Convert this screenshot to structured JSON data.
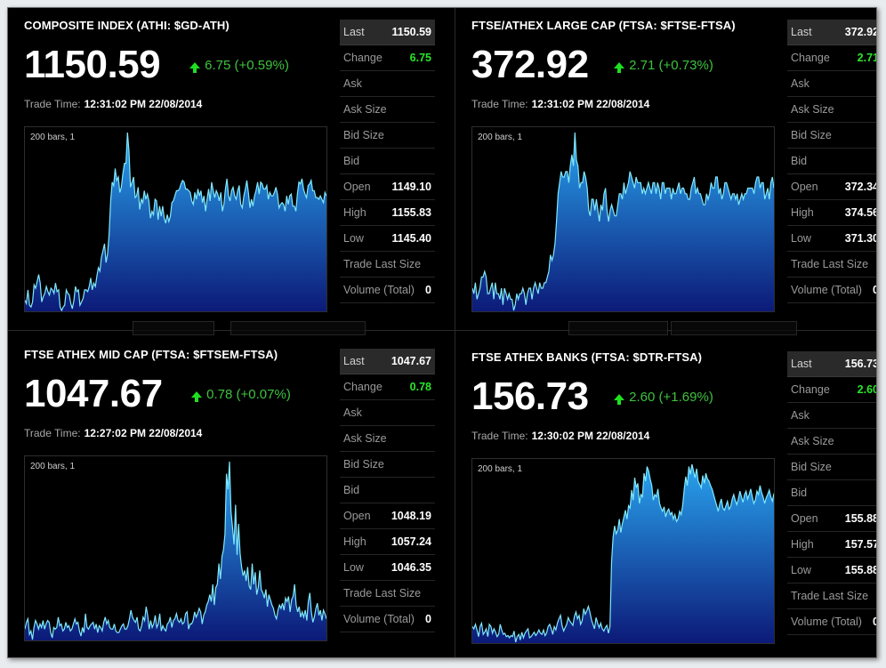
{
  "panels": [
    {
      "title": "COMPOSITE INDEX (ATHI: $GD-ATH)",
      "price": "1150.59",
      "change_text": "6.75 (+0.59%)",
      "trade_time_label": "Trade Time:",
      "trade_time": "12:31:02 PM 22/08/2014",
      "bars_label": "200 bars, 1",
      "rows": [
        {
          "label": "Last",
          "value": "1150.59"
        },
        {
          "label": "Change",
          "value": "6.75"
        },
        {
          "label": "Ask",
          "value": ""
        },
        {
          "label": "Ask Size",
          "value": ""
        },
        {
          "label": "Bid Size",
          "value": ""
        },
        {
          "label": "Bid",
          "value": ""
        },
        {
          "label": "Open",
          "value": "1149.10"
        },
        {
          "label": "High",
          "value": "1155.83"
        },
        {
          "label": "Low",
          "value": "1145.40"
        },
        {
          "label": "Trade Last Size",
          "value": ""
        },
        {
          "label": "Volume (Total)",
          "value": "0"
        }
      ],
      "series": [
        1146.0,
        1145.8,
        1146.6,
        1145.7,
        1145.6,
        1145.9,
        1146.9,
        1146.7,
        1147.1,
        1147.5,
        1147.0,
        1145.9,
        1146.2,
        1146.4,
        1146.8,
        1146.5,
        1146.3,
        1146.7,
        1146.6,
        1146.4,
        1147.0,
        1146.5,
        1146.6,
        1145.6,
        1145.4,
        1145.6,
        1145.7,
        1146.6,
        1146.4,
        1146.3,
        1145.8,
        1145.5,
        1146.0,
        1146.8,
        1146.5,
        1146.6,
        1145.7,
        1145.9,
        1146.1,
        1146.6,
        1146.6,
        1146.5,
        1146.8,
        1147.3,
        1146.6,
        1147.0,
        1146.8,
        1147.4,
        1147.9,
        1147.7,
        1148.5,
        1148.9,
        1149.3,
        1148.2,
        1148.7,
        1149.8,
        1151.8,
        1152.9,
        1152.7,
        1153.7,
        1153.0,
        1153.2,
        1152.3,
        1152.6,
        1153.4,
        1154.0,
        1154.0,
        1155.8,
        1154.7,
        1152.6,
        1152.9,
        1153.2,
        1152.0,
        1152.1,
        1152.6,
        1151.3,
        1151.9,
        1151.7,
        1152.4,
        1151.9,
        1152.2,
        1151.8,
        1150.8,
        1151.2,
        1151.0,
        1151.9,
        1151.8,
        1150.7,
        1151.5,
        1150.9,
        1151.5,
        1150.8,
        1150.5,
        1151.0,
        1150.6,
        1150.9,
        1151.7,
        1151.8,
        1152.1,
        1152.4,
        1152.4,
        1152.5,
        1152.8,
        1153.0,
        1152.9,
        1152.5,
        1152.5,
        1152.4,
        1152.3,
        1151.8,
        1151.6,
        1152.3,
        1151.9,
        1152.5,
        1152.1,
        1152.4,
        1151.7,
        1152.1,
        1151.2,
        1151.9,
        1152.5,
        1151.8,
        1152.9,
        1152.4,
        1152.0,
        1152.4,
        1152.2,
        1151.8,
        1152.3,
        1151.2,
        1151.6,
        1152.5,
        1153.1,
        1152.1,
        1151.8,
        1152.4,
        1152.6,
        1152.1,
        1151.9,
        1152.4,
        1152.7,
        1151.6,
        1151.4,
        1152.1,
        1152.5,
        1153.0,
        1152.3,
        1151.4,
        1151.9,
        1151.5,
        1152.1,
        1152.4,
        1152.9,
        1152.2,
        1152.9,
        1152.8,
        1152.5,
        1152.5,
        1152.7,
        1151.9,
        1152.3,
        1152.1,
        1152.1,
        1152.3,
        1152.6,
        1152.2,
        1151.4,
        1151.6,
        1151.7,
        1151.6,
        1151.2,
        1152.1,
        1151.6,
        1152.1,
        1152.2,
        1151.5,
        1151.5,
        1151.2,
        1152.2,
        1152.9,
        1152.8,
        1153.1,
        1152.5,
        1152.2,
        1152.0,
        1152.7,
        1152.8,
        1153.0,
        1152.4,
        1152.4,
        1152.0,
        1152.0,
        1151.9,
        1152.1,
        1151.9,
        1151.7,
        1152.3,
        1152.1
      ]
    },
    {
      "title": "FTSE/ATHEX LARGE CAP (FTSA: $FTSE-FTSA)",
      "price": "372.92",
      "change_text": "2.71 (+0.73%)",
      "trade_time_label": "Trade Time:",
      "trade_time": "12:31:02 PM 22/08/2014",
      "bars_label": "200 bars, 1",
      "rows": [
        {
          "label": "Last",
          "value": "372.92"
        },
        {
          "label": "Change",
          "value": "2.71"
        },
        {
          "label": "Ask",
          "value": ""
        },
        {
          "label": "Ask Size",
          "value": ""
        },
        {
          "label": "Bid Size",
          "value": ""
        },
        {
          "label": "Bid",
          "value": ""
        },
        {
          "label": "Open",
          "value": "372.34"
        },
        {
          "label": "High",
          "value": "374.56"
        },
        {
          "label": "Low",
          "value": "371.30"
        },
        {
          "label": "Trade Last Size",
          "value": ""
        },
        {
          "label": "Volume (Total)",
          "value": "0"
        }
      ],
      "series": [
        371.8,
        371.7,
        371.9,
        371.6,
        371.7,
        371.8,
        372.0,
        372.0,
        372.1,
        372.0,
        371.7,
        371.7,
        371.8,
        371.9,
        371.6,
        371.9,
        371.7,
        371.7,
        371.6,
        371.8,
        371.5,
        371.8,
        371.7,
        371.6,
        371.7,
        371.6,
        371.6,
        371.4,
        371.5,
        371.7,
        371.6,
        371.7,
        371.7,
        371.8,
        371.7,
        371.5,
        371.7,
        371.8,
        371.8,
        371.6,
        371.8,
        371.9,
        371.8,
        371.7,
        371.9,
        371.8,
        371.8,
        371.9,
        371.9,
        372.0,
        372.1,
        372.4,
        372.3,
        372.4,
        372.6,
        373.0,
        373.5,
        373.7,
        373.9,
        373.8,
        373.8,
        373.9,
        373.9,
        373.7,
        374.0,
        374.2,
        374.0,
        374.6,
        374.1,
        374.0,
        373.6,
        373.7,
        373.7,
        373.9,
        373.8,
        373.6,
        373.2,
        373.1,
        373.4,
        373.4,
        373.2,
        373.4,
        373.2,
        373.0,
        373.3,
        373.2,
        373.5,
        373.6,
        373.2,
        373.0,
        373.2,
        373.3,
        373.2,
        373.1,
        373.1,
        373.3,
        373.5,
        373.5,
        373.4,
        373.7,
        373.5,
        373.6,
        373.7,
        373.9,
        373.8,
        373.7,
        373.6,
        373.8,
        373.7,
        373.7,
        373.7,
        373.5,
        373.6,
        373.5,
        373.6,
        373.7,
        373.6,
        373.5,
        373.7,
        373.7,
        373.5,
        373.7,
        373.6,
        373.4,
        373.7,
        373.7,
        373.5,
        373.6,
        373.6,
        373.6,
        373.4,
        373.6,
        373.5,
        373.5,
        373.6,
        373.7,
        373.5,
        373.6,
        373.6,
        373.5,
        373.5,
        373.4,
        373.4,
        373.6,
        373.7,
        373.8,
        373.5,
        373.6,
        373.5,
        373.5,
        373.4,
        373.3,
        373.3,
        373.5,
        373.4,
        373.5,
        373.7,
        373.6,
        373.6,
        373.8,
        373.8,
        373.5,
        373.6,
        373.4,
        373.5,
        373.7,
        373.7,
        373.6,
        373.5,
        373.4,
        373.5,
        373.5,
        373.4,
        373.5,
        373.3,
        373.4,
        373.5,
        373.4,
        373.5,
        373.5,
        373.6,
        373.6,
        373.6,
        373.6,
        373.5,
        373.7,
        373.8,
        373.8,
        373.6,
        373.7,
        373.7,
        373.4,
        373.5,
        373.6,
        373.4,
        373.7,
        373.8,
        373.6
      ]
    },
    {
      "title": "FTSE ATHEX MID CAP (FTSA: $FTSEM-FTSA)",
      "price": "1047.67",
      "change_text": "0.78 (+0.07%)",
      "trade_time_label": "Trade Time:",
      "trade_time": "12:27:02 PM 22/08/2014",
      "bars_label": "200 bars, 1",
      "rows": [
        {
          "label": "Last",
          "value": "1047.67"
        },
        {
          "label": "Change",
          "value": "0.78"
        },
        {
          "label": "Ask",
          "value": ""
        },
        {
          "label": "Ask Size",
          "value": ""
        },
        {
          "label": "Bid Size",
          "value": ""
        },
        {
          "label": "Bid",
          "value": ""
        },
        {
          "label": "Open",
          "value": "1048.19"
        },
        {
          "label": "High",
          "value": "1057.24"
        },
        {
          "label": "Low",
          "value": "1046.35"
        },
        {
          "label": "Trade Last Size",
          "value": ""
        },
        {
          "label": "Volume (Total)",
          "value": "0"
        }
      ],
      "series": [
        1047.5,
        1047.9,
        1048.1,
        1047.2,
        1047.4,
        1046.9,
        1047.6,
        1048.0,
        1047.8,
        1047.5,
        1047.8,
        1047.6,
        1048.0,
        1047.5,
        1047.8,
        1048.0,
        1047.9,
        1047.3,
        1047.0,
        1047.6,
        1047.5,
        1047.6,
        1048.2,
        1047.7,
        1047.8,
        1047.4,
        1047.5,
        1047.9,
        1047.6,
        1047.7,
        1047.4,
        1047.5,
        1047.8,
        1048.1,
        1047.8,
        1047.9,
        1047.4,
        1047.1,
        1047.6,
        1047.3,
        1048.4,
        1047.6,
        1047.5,
        1047.7,
        1047.8,
        1047.9,
        1047.5,
        1047.8,
        1047.3,
        1047.7,
        1047.6,
        1047.4,
        1047.9,
        1048.2,
        1047.8,
        1048.0,
        1047.6,
        1047.5,
        1047.5,
        1047.8,
        1047.4,
        1047.3,
        1047.3,
        1047.5,
        1047.7,
        1047.8,
        1047.5,
        1047.5,
        1047.7,
        1048.1,
        1048.6,
        1048.2,
        1048.0,
        1047.9,
        1048.2,
        1047.5,
        1047.4,
        1047.7,
        1048.2,
        1048.0,
        1048.8,
        1048.3,
        1047.5,
        1048.0,
        1047.6,
        1047.8,
        1048.3,
        1047.6,
        1047.8,
        1048.4,
        1047.4,
        1047.7,
        1047.5,
        1047.4,
        1047.8,
        1047.9,
        1048.2,
        1047.6,
        1048.0,
        1048.1,
        1048.4,
        1048.0,
        1047.9,
        1048.1,
        1047.8,
        1047.9,
        1048.4,
        1048.5,
        1047.5,
        1047.8,
        1047.8,
        1048.0,
        1048.5,
        1048.2,
        1048.4,
        1048.7,
        1048.5,
        1047.8,
        1048.3,
        1048.5,
        1048.9,
        1049.1,
        1049.5,
        1049.1,
        1050.1,
        1048.9,
        1049.9,
        1050.1,
        1051.3,
        1050.4,
        1051.7,
        1052.1,
        1053.0,
        1056.5,
        1055.6,
        1057.2,
        1054.3,
        1053.4,
        1052.4,
        1054.7,
        1051.8,
        1053.6,
        1051.9,
        1051.1,
        1050.6,
        1050.9,
        1050.3,
        1051.1,
        1050.0,
        1049.8,
        1051.3,
        1050.1,
        1050.8,
        1049.5,
        1049.9,
        1050.9,
        1049.8,
        1049.6,
        1049.3,
        1049.8,
        1048.8,
        1049.5,
        1049.2,
        1048.9,
        1048.7,
        1048.3,
        1048.1,
        1048.6,
        1048.9,
        1048.7,
        1049.0,
        1048.6,
        1049.3,
        1049.1,
        1049.4,
        1048.5,
        1049.2,
        1049.4,
        1050.1,
        1048.9,
        1048.5,
        1048.8,
        1048.2,
        1048.5,
        1048.2,
        1048.6,
        1048.0,
        1049.1,
        1049.6,
        1048.5,
        1047.9,
        1048.2,
        1048.7,
        1049.0,
        1048.3,
        1048.6,
        1048.0,
        1048.6,
        1048.4,
        1048.1
      ]
    },
    {
      "title": "FTSE ATHEX BANKS (FTSA: $DTR-FTSA)",
      "price": "156.73",
      "change_text": "2.60 (+1.69%)",
      "trade_time_label": "Trade Time:",
      "trade_time": "12:30:02 PM 22/08/2014",
      "bars_label": "200 bars, 1",
      "rows": [
        {
          "label": "Last",
          "value": "156.73"
        },
        {
          "label": "Change",
          "value": "2.60"
        },
        {
          "label": "Ask",
          "value": ""
        },
        {
          "label": "Ask Size",
          "value": ""
        },
        {
          "label": "Bid Size",
          "value": ""
        },
        {
          "label": "Bid",
          "value": ""
        },
        {
          "label": "Open",
          "value": "155.88"
        },
        {
          "label": "High",
          "value": "157.57"
        },
        {
          "label": "Low",
          "value": "155.88"
        },
        {
          "label": "Trade Last Size",
          "value": ""
        },
        {
          "label": "Volume (Total)",
          "value": "0"
        }
      ],
      "series": [
        156.12,
        156.1,
        156.14,
        156.09,
        156.03,
        156.12,
        156.15,
        156.05,
        156.07,
        156.1,
        156.03,
        156.14,
        156.12,
        156.06,
        156.1,
        156.07,
        156.03,
        156.05,
        156.14,
        156.09,
        156.05,
        156.06,
        156.03,
        156.04,
        156.02,
        156.04,
        156.03,
        156.08,
        155.98,
        156.03,
        156.05,
        156.0,
        156.07,
        156.02,
        156.06,
        156.08,
        156.1,
        156.02,
        156.03,
        156.05,
        156.07,
        156.04,
        156.06,
        156.09,
        156.06,
        156.05,
        156.09,
        156.04,
        156.06,
        156.12,
        156.14,
        156.1,
        156.05,
        156.12,
        156.09,
        156.15,
        156.19,
        156.22,
        156.13,
        156.08,
        156.11,
        156.14,
        156.2,
        156.17,
        156.15,
        156.13,
        156.21,
        156.25,
        156.19,
        156.22,
        156.14,
        156.17,
        156.28,
        156.23,
        156.26,
        156.3,
        156.25,
        156.18,
        156.14,
        156.1,
        156.2,
        156.15,
        156.11,
        156.15,
        156.1,
        156.08,
        156.11,
        156.13,
        156.06,
        156.12,
        156.7,
        156.92,
        157.02,
        156.95,
        156.98,
        157.08,
        156.96,
        157.04,
        157.1,
        157.16,
        157.08,
        157.2,
        157.18,
        157.34,
        157.25,
        157.45,
        157.36,
        157.4,
        157.22,
        157.3,
        157.28,
        157.49,
        157.42,
        157.55,
        157.51,
        157.44,
        157.38,
        157.25,
        157.3,
        157.28,
        157.35,
        157.22,
        157.18,
        157.15,
        157.19,
        157.1,
        157.15,
        157.17,
        157.12,
        157.14,
        157.08,
        157.12,
        157.06,
        157.08,
        157.15,
        157.12,
        157.2,
        157.35,
        157.46,
        157.38,
        157.55,
        157.48,
        157.57,
        157.51,
        157.45,
        157.53,
        157.42,
        157.39,
        157.36,
        157.47,
        157.4,
        157.49,
        157.44,
        157.42,
        157.38,
        157.35,
        157.3,
        157.25,
        157.2,
        157.15,
        157.22,
        157.26,
        157.18,
        157.16,
        157.2,
        157.24,
        157.17,
        157.19,
        157.26,
        157.3,
        157.25,
        157.21,
        157.26,
        157.33,
        157.28,
        157.23,
        157.3,
        157.33,
        157.26,
        157.3,
        157.35,
        157.28,
        157.22,
        157.25,
        157.33,
        157.3,
        157.38,
        157.32,
        157.28,
        157.22,
        157.27,
        157.3,
        157.34,
        157.28,
        157.24,
        157.31
      ]
    }
  ],
  "colors": {
    "accent_change": "#29e629",
    "area_top": "#29a3ee",
    "area_bottom": "#0c1a78",
    "line": "#7fe9ff"
  }
}
